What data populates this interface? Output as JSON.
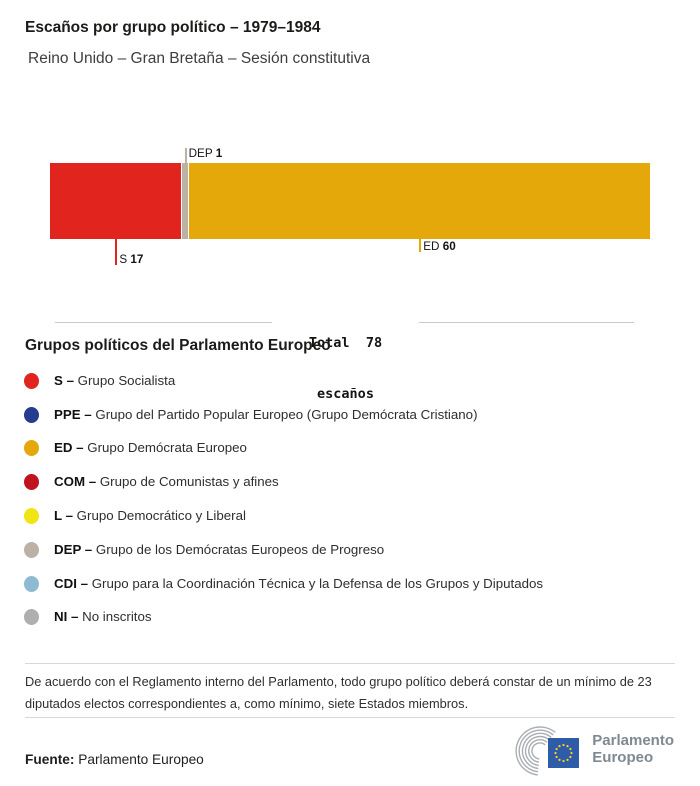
{
  "header": {
    "title": "Escaños por grupo político – 1979–1984",
    "subtitle": "Reino Unido – Gran Bretaña – Sesión constitutiva"
  },
  "chart_data": {
    "type": "bar",
    "orientation": "horizontal",
    "stacked": true,
    "title": "Escaños por grupo político – 1979–1984",
    "subtitle": "Reino Unido – Gran Bretaña – Sesión constitutiva",
    "total": 78,
    "total_line1": "Total  78",
    "total_line2": "escaños",
    "categories": [
      "S",
      "DEP",
      "ED"
    ],
    "values": [
      17,
      1,
      60
    ],
    "segments": [
      {
        "group": "S",
        "seats": 17,
        "color": "#E2241F",
        "callout": "below",
        "tick_len": 26
      },
      {
        "group": "DEP",
        "seats": 1,
        "color": "#BCB1A6",
        "callout": "above",
        "tick_len": 15
      },
      {
        "group": "ED",
        "seats": 60,
        "color": "#E5A80B",
        "callout": "below",
        "tick_len": 13
      }
    ]
  },
  "legend": {
    "heading": "Grupos políticos del Parlamento Europeo",
    "items": [
      {
        "abbr": "S –",
        "label": "Grupo Socialista",
        "color": "#E2241F"
      },
      {
        "abbr": "PPE –",
        "label": "Grupo del Partido Popular Europeo (Grupo Demócrata Cristiano)",
        "color": "#253C8F"
      },
      {
        "abbr": "ED –",
        "label": "Grupo Demócrata Europeo",
        "color": "#E5A80B"
      },
      {
        "abbr": "COM –",
        "label": "Grupo de Comunistas y afines",
        "color": "#C0131E"
      },
      {
        "abbr": "L –",
        "label": "Grupo Democrático y Liberal",
        "color": "#F0E414"
      },
      {
        "abbr": "DEP –",
        "label": "Grupo de los Demócratas Europeos de Progreso",
        "color": "#BCB1A6"
      },
      {
        "abbr": "CDI –",
        "label": "Grupo para la Coordinación Técnica y la Defensa de los Grupos y Diputados",
        "color": "#90BAD3"
      },
      {
        "abbr": "NI –",
        "label": "No inscritos",
        "color": "#AFAFAF"
      }
    ]
  },
  "footnote": "De acuerdo con el Reglamento interno del Parlamento, todo grupo político deberá constar de un mínimo de 23 diputados electos correspondientes a, como mínimo, siete Estados miembros.",
  "source": {
    "label": "Fuente:",
    "value": "Parlamento Europeo"
  },
  "logo": {
    "line1": "Parlamento",
    "line2": "Europeo",
    "flag_blue": "#2E5CA8",
    "star_yellow": "#FFD617",
    "arc_grey": "#A8AEB4"
  }
}
